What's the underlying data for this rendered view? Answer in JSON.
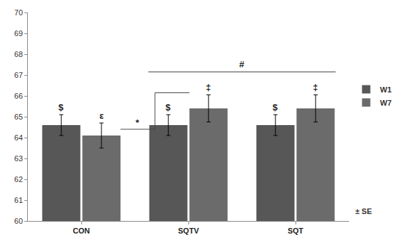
{
  "chart_data": {
    "type": "bar",
    "categories": [
      "CON",
      "SQTV",
      "SQT"
    ],
    "series": [
      {
        "name": "W1",
        "color": "#575757",
        "values": [
          64.6,
          64.6,
          64.6
        ],
        "error": [
          0.5,
          0.5,
          0.5
        ]
      },
      {
        "name": "W7",
        "color": "#6b6b6b",
        "values": [
          64.1,
          65.4,
          65.4
        ],
        "error": [
          0.6,
          0.65,
          0.65
        ]
      }
    ],
    "ylim": [
      60,
      70
    ],
    "yticks": [
      60,
      61,
      62,
      63,
      64,
      65,
      66,
      67,
      68,
      69,
      70
    ],
    "grid": false,
    "legend": "right",
    "annotations": [
      {
        "text": "$",
        "category": "CON",
        "series": "W1"
      },
      {
        "text": "ε",
        "category": "CON",
        "series": "W7"
      },
      {
        "text": "$",
        "category": "SQTV",
        "series": "W1"
      },
      {
        "text": "‡",
        "category": "SQTV",
        "series": "W7"
      },
      {
        "text": "$",
        "category": "SQT",
        "series": "W1"
      },
      {
        "text": "‡",
        "category": "SQT",
        "series": "W7"
      }
    ],
    "comparisons": [
      {
        "text": "*",
        "from": {
          "category": "CON",
          "series": "W7"
        },
        "to": {
          "category": "SQTV",
          "series": "W7"
        }
      },
      {
        "text": "#",
        "from": {
          "category": "SQTV"
        },
        "to": {
          "category": "SQT"
        }
      }
    ],
    "note": "± SE"
  }
}
